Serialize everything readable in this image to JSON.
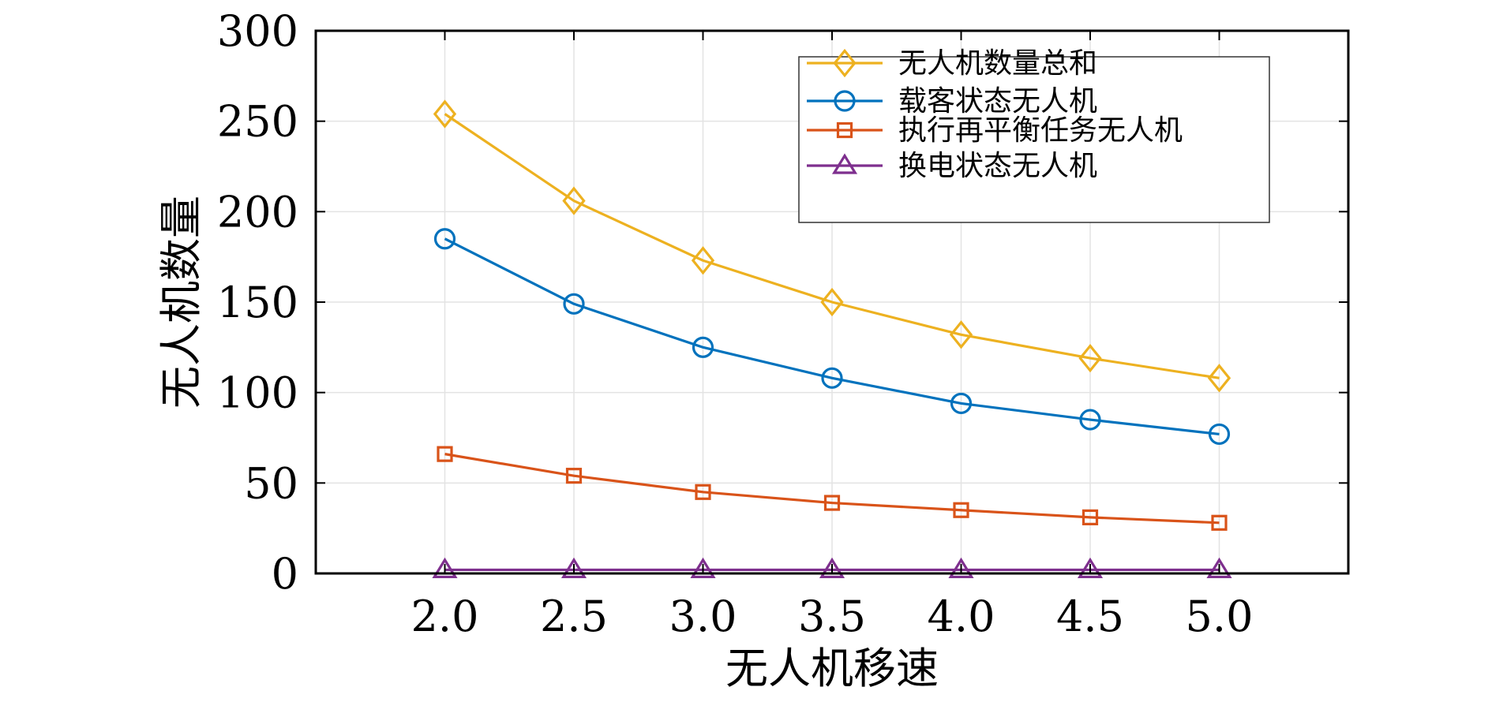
{
  "chart_data": {
    "type": "line",
    "title": "",
    "xlabel": "无人机移速",
    "ylabel": "无人机数量",
    "x": [
      2.0,
      2.5,
      3.0,
      3.5,
      4.0,
      4.5,
      5.0
    ],
    "x_tick_labels": [
      "2.0",
      "2.5",
      "3.0",
      "3.5",
      "4.0",
      "4.5",
      "5.0"
    ],
    "xlim": [
      1.5,
      5.5
    ],
    "ylim": [
      0,
      300
    ],
    "y_ticks": [
      0,
      50,
      100,
      150,
      200,
      250,
      300
    ],
    "y_tick_labels": [
      "0",
      "50",
      "100",
      "150",
      "200",
      "250",
      "300"
    ],
    "grid": true,
    "legend_position": "top-right",
    "series": [
      {
        "name": "无人机数量总和",
        "marker": "diamond",
        "color": "#EDB120",
        "values": [
          254,
          206,
          173,
          150,
          132,
          119,
          108
        ]
      },
      {
        "name": "载客状态无人机",
        "marker": "circle",
        "color": "#0072BD",
        "values": [
          185,
          149,
          125,
          108,
          94,
          85,
          77
        ]
      },
      {
        "name": "执行再平衡任务无人机",
        "marker": "square",
        "color": "#D95319",
        "values": [
          66,
          54,
          45,
          39,
          35,
          31,
          28
        ]
      },
      {
        "name": "换电状态无人机",
        "marker": "triangle",
        "color": "#7E2F8E",
        "values": [
          2,
          2,
          2,
          2,
          2,
          2,
          2
        ]
      }
    ]
  }
}
